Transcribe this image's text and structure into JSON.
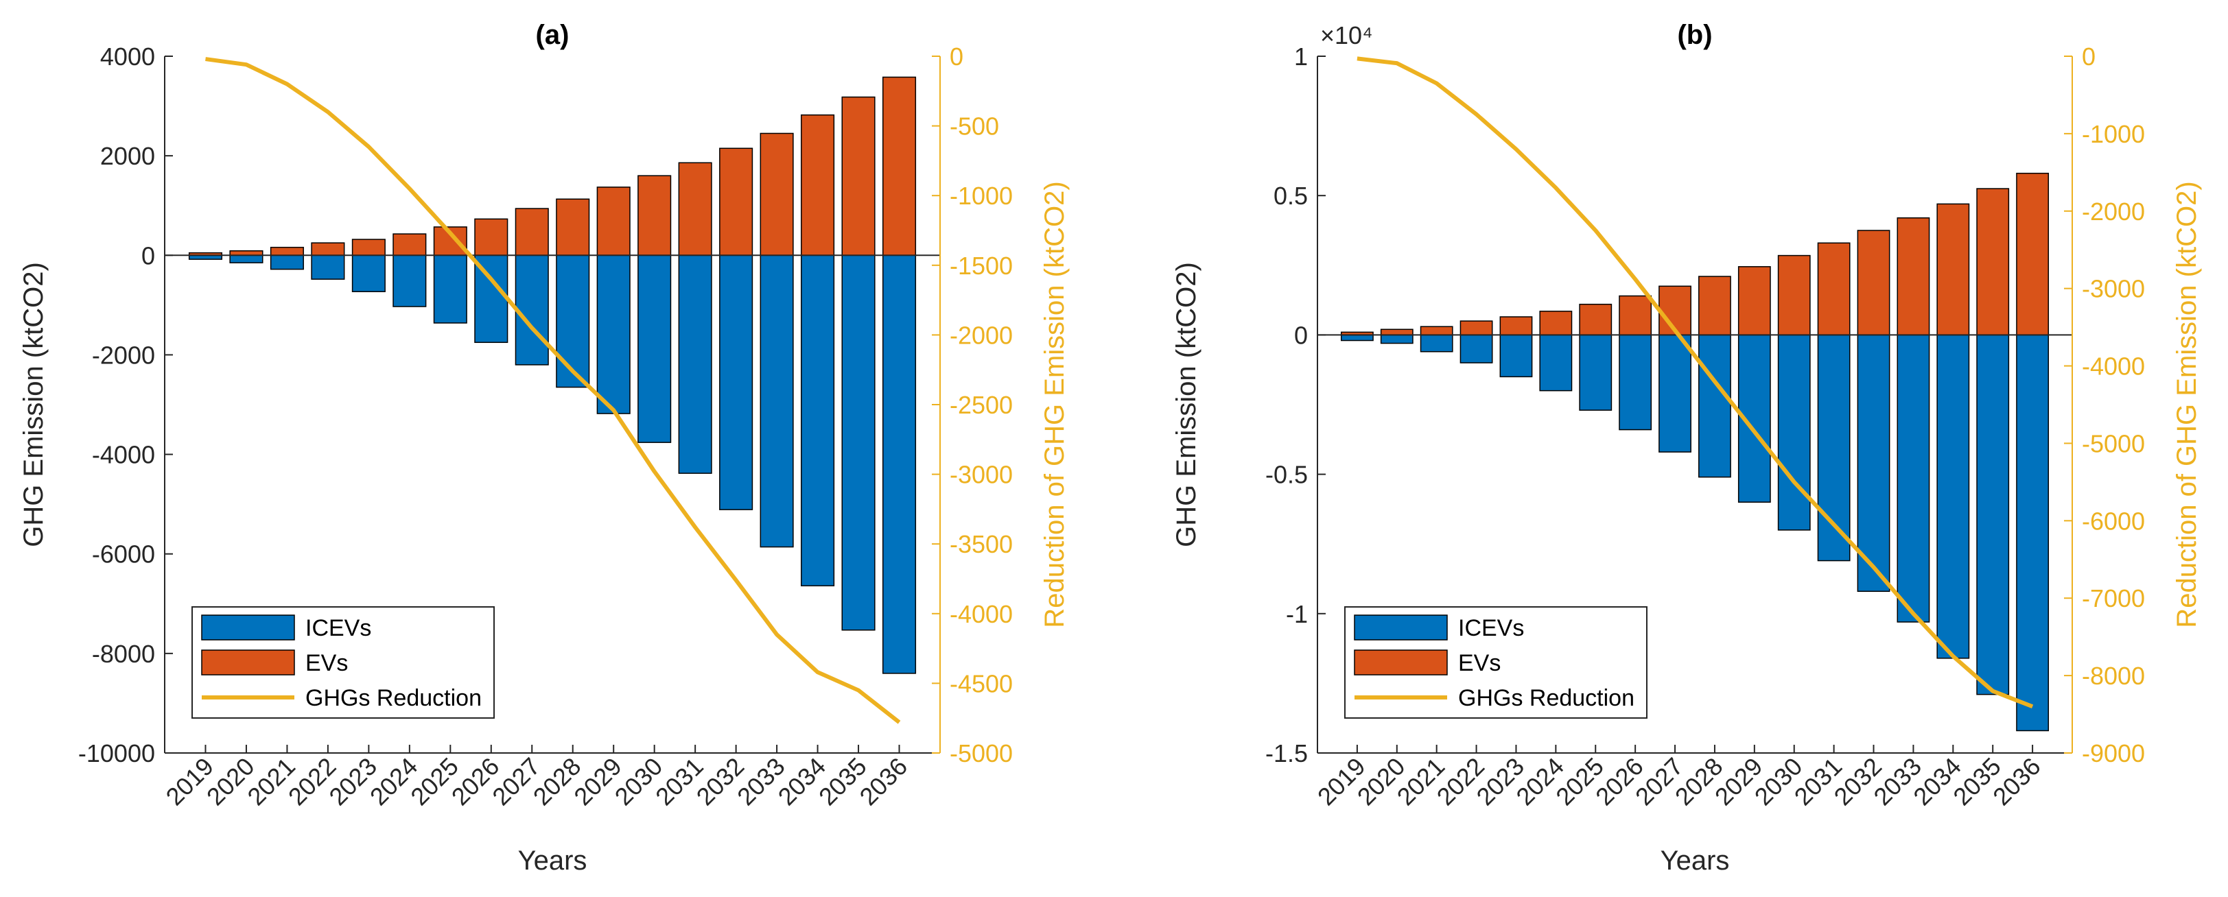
{
  "colors": {
    "icev": "#0072BD",
    "ev": "#D95319",
    "reduction": "#EDB120",
    "axis": "#262626",
    "bar_edge": "#000000",
    "zero_line": "#262626"
  },
  "chart_data": [
    {
      "type": "bar",
      "title": "(a)",
      "xlabel": "Years",
      "ylabel": "GHG Emission (ktCO2)",
      "ylabel_right": "Reduction of GHG Emission (ktCO2)",
      "exponent_label": "",
      "categories": [
        "2019",
        "2020",
        "2021",
        "2022",
        "2023",
        "2024",
        "2025",
        "2026",
        "2027",
        "2028",
        "2029",
        "2030",
        "2031",
        "2032",
        "2033",
        "2034",
        "2035",
        "2036"
      ],
      "ylim": [
        -10000,
        4000
      ],
      "yticks": [
        -10000,
        -8000,
        -6000,
        -4000,
        -2000,
        0,
        2000,
        4000
      ],
      "ytick_labels": [
        "-10000",
        "-8000",
        "-6000",
        "-4000",
        "-2000",
        "0",
        "2000",
        "4000"
      ],
      "ylim_right": [
        -5000,
        0
      ],
      "yticks_right": [
        -5000,
        -4500,
        -4000,
        -3500,
        -3000,
        -2500,
        -2000,
        -1500,
        -1000,
        -500,
        0
      ],
      "ytick_labels_right": [
        "-5000",
        "-4500",
        "-4000",
        "-3500",
        "-3000",
        "-2500",
        "-2000",
        "-1500",
        "-1000",
        "-500",
        "0"
      ],
      "series": [
        {
          "name": "ICEVs",
          "axis": "left",
          "kind": "bar",
          "values": [
            -80,
            -150,
            -280,
            -480,
            -730,
            -1030,
            -1360,
            -1750,
            -2200,
            -2650,
            -3180,
            -3760,
            -4380,
            -5110,
            -5860,
            -6640,
            -7530,
            -8400
          ]
        },
        {
          "name": "EVs",
          "axis": "left",
          "kind": "bar",
          "values": [
            50,
            90,
            160,
            250,
            320,
            430,
            570,
            730,
            940,
            1130,
            1370,
            1600,
            1860,
            2150,
            2450,
            2820,
            3180,
            3580
          ]
        },
        {
          "name": "GHGs Reduction",
          "axis": "right",
          "kind": "line",
          "values": [
            -20,
            -60,
            -200,
            -400,
            -650,
            -950,
            -1270,
            -1600,
            -1950,
            -2260,
            -2540,
            -2980,
            -3380,
            -3760,
            -4150,
            -4420,
            -4550,
            -4780
          ]
        }
      ],
      "legend": {
        "position": "bottom-left",
        "entries": [
          "ICEVs",
          "EVs",
          "GHGs Reduction"
        ]
      }
    },
    {
      "type": "bar",
      "title": "(b)",
      "xlabel": "Years",
      "ylabel": "GHG Emission (ktCO2)",
      "ylabel_right": "Reduction of GHG Emission (ktCO2)",
      "exponent_label": "×10⁴",
      "categories": [
        "2019",
        "2020",
        "2021",
        "2022",
        "2023",
        "2024",
        "2025",
        "2026",
        "2027",
        "2028",
        "2029",
        "2030",
        "2031",
        "2032",
        "2033",
        "2034",
        "2035",
        "2036"
      ],
      "ylim": [
        -15000,
        10000
      ],
      "yticks": [
        -15000,
        -10000,
        -5000,
        0,
        5000,
        10000
      ],
      "ytick_labels": [
        "-1.5",
        "-1",
        "-0.5",
        "0",
        "0.5",
        "1"
      ],
      "ylim_right": [
        -9000,
        0
      ],
      "yticks_right": [
        -9000,
        -8000,
        -7000,
        -6000,
        -5000,
        -4000,
        -3000,
        -2000,
        -1000,
        0
      ],
      "ytick_labels_right": [
        "-9000",
        "-8000",
        "-7000",
        "-6000",
        "-5000",
        "-4000",
        "-3000",
        "-2000",
        "-1000",
        "0"
      ],
      "series": [
        {
          "name": "ICEVs",
          "axis": "left",
          "kind": "bar",
          "values": [
            -200,
            -300,
            -600,
            -1000,
            -1500,
            -2000,
            -2700,
            -3400,
            -4200,
            -5100,
            -6000,
            -7000,
            -8100,
            -9200,
            -10300,
            -11600,
            -12900,
            -14200
          ]
        },
        {
          "name": "EVs",
          "axis": "left",
          "kind": "bar",
          "values": [
            100,
            200,
            300,
            500,
            650,
            850,
            1100,
            1400,
            1750,
            2100,
            2450,
            2850,
            3300,
            3750,
            4200,
            4700,
            5250,
            5800
          ]
        },
        {
          "name": "GHGs Reduction",
          "axis": "right",
          "kind": "line",
          "values": [
            -30,
            -90,
            -350,
            -750,
            -1200,
            -1700,
            -2250,
            -2880,
            -3540,
            -4200,
            -4850,
            -5500,
            -6050,
            -6600,
            -7200,
            -7750,
            -8200,
            -8400
          ]
        }
      ],
      "legend": {
        "position": "bottom-left",
        "entries": [
          "ICEVs",
          "EVs",
          "GHGs Reduction"
        ]
      }
    }
  ]
}
